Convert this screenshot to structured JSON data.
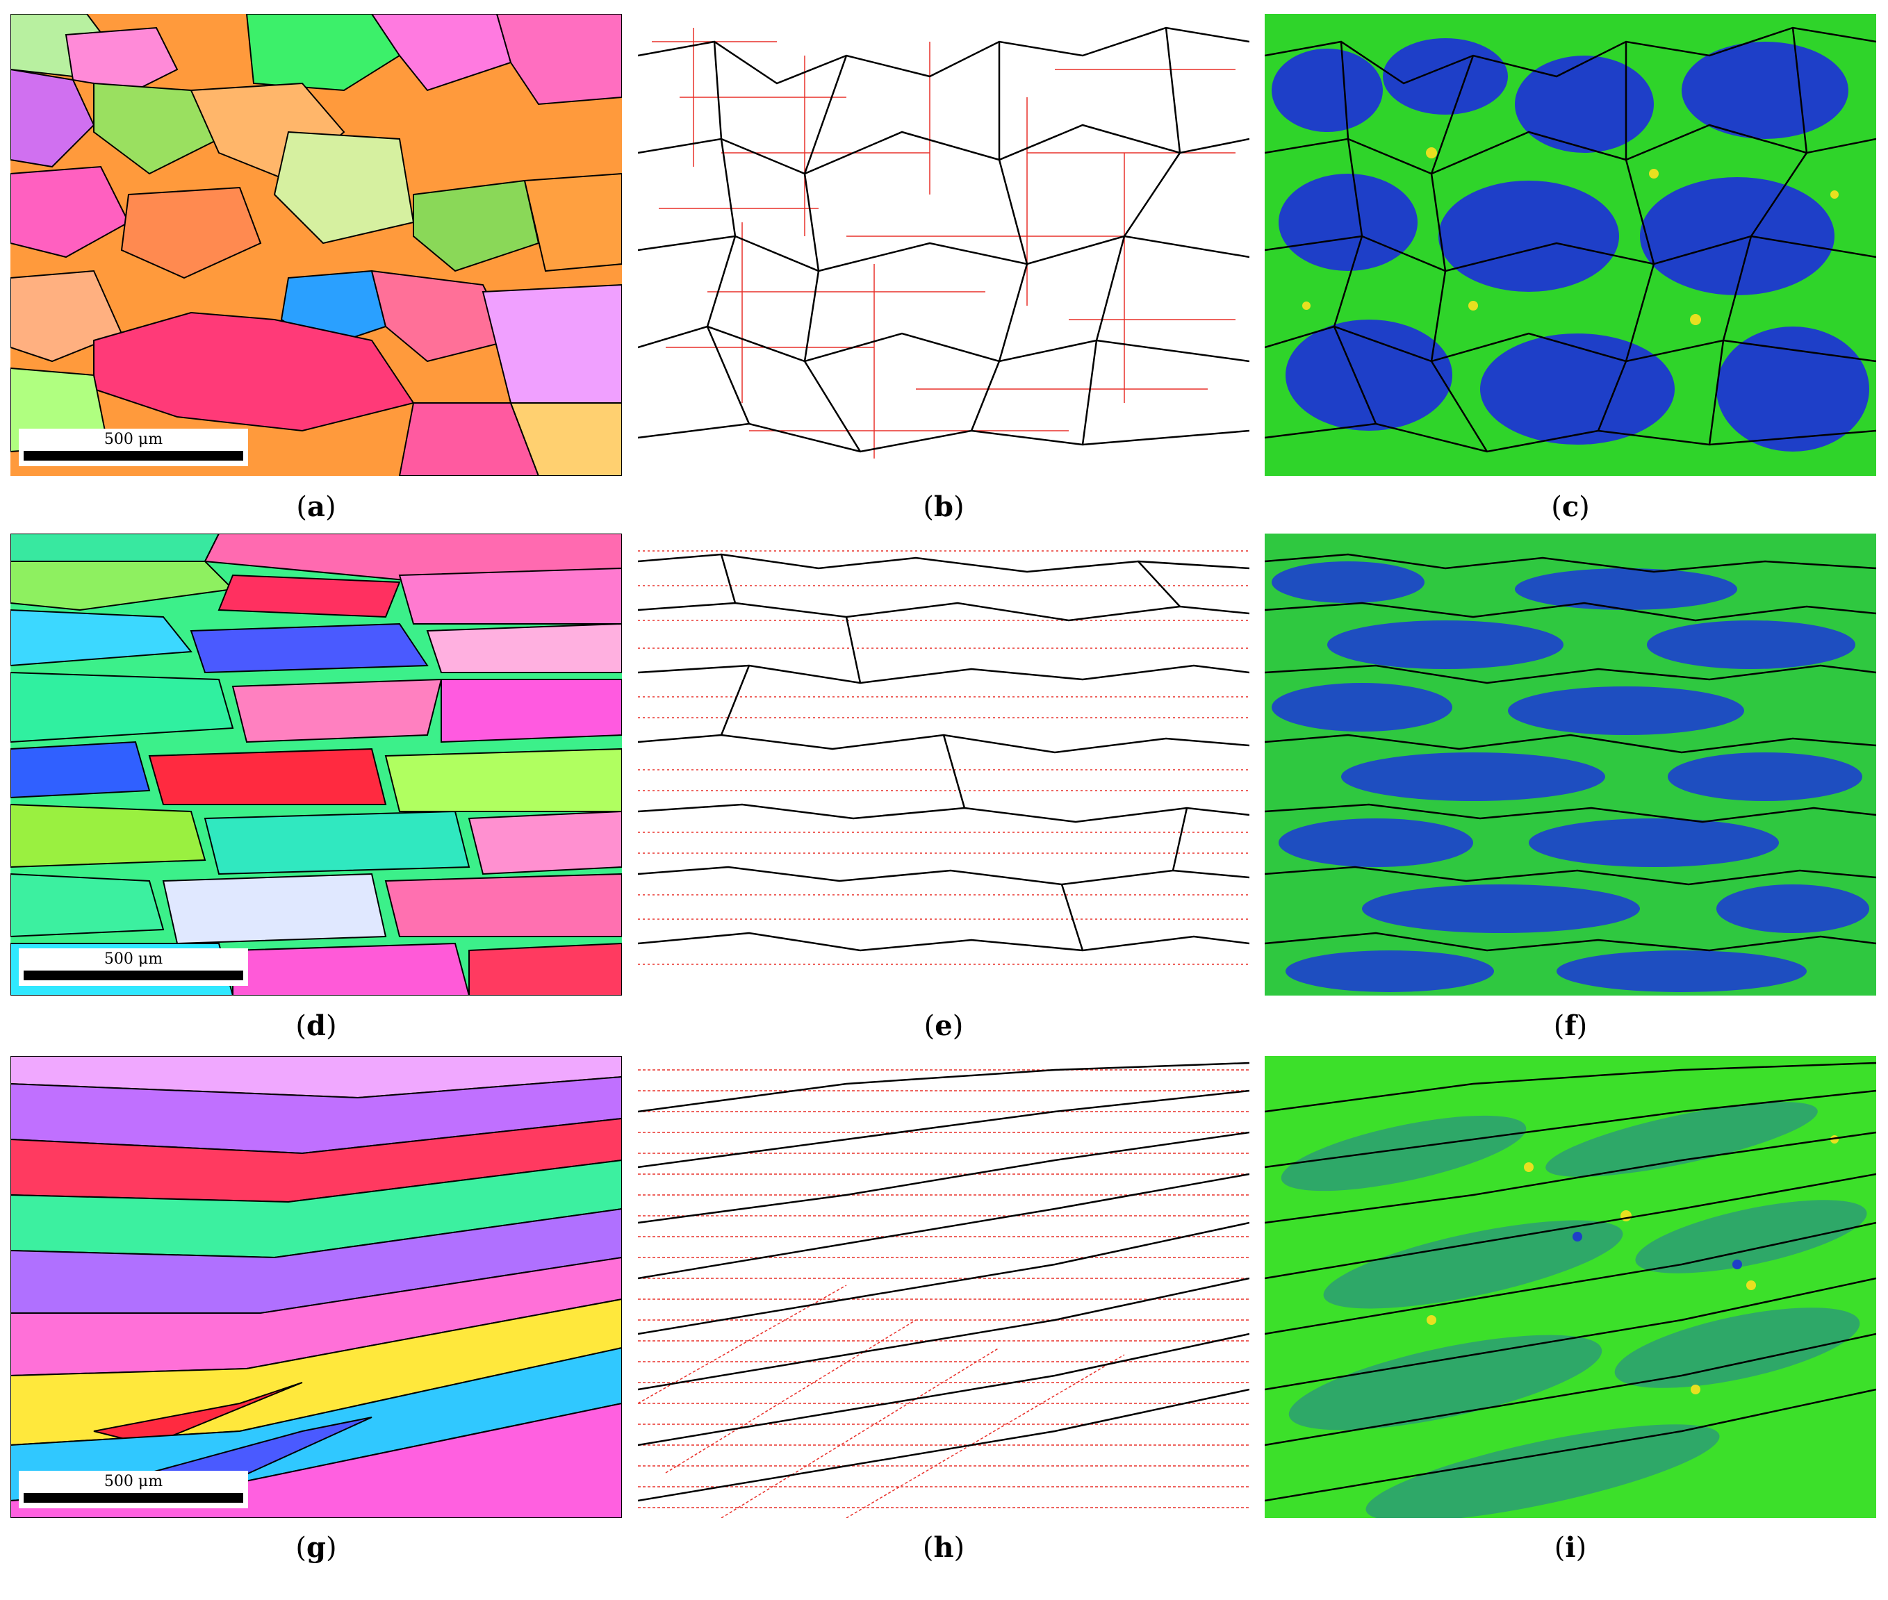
{
  "figure": {
    "captions": {
      "a": "a",
      "b": "b",
      "c": "c",
      "d": "d",
      "e": "e",
      "f": "f",
      "g": "g",
      "h": "h",
      "i": "i"
    },
    "scale_bar_label": "500 μm"
  },
  "panels": [
    {
      "id": "a",
      "kind": "ipf-orientation-map",
      "has_scale_bar": true
    },
    {
      "id": "b",
      "kind": "grain-boundary-map",
      "boundary_colors": {
        "high_angle": "#000000",
        "low_angle": "#e8302a"
      }
    },
    {
      "id": "c",
      "kind": "kam-map",
      "colors": {
        "low": "#1e3fc8",
        "mid": "#2fd42a",
        "high": "#e8e020"
      }
    },
    {
      "id": "d",
      "kind": "ipf-orientation-map",
      "has_scale_bar": true
    },
    {
      "id": "e",
      "kind": "grain-boundary-map",
      "boundary_colors": {
        "high_angle": "#000000",
        "low_angle": "#e8302a"
      }
    },
    {
      "id": "f",
      "kind": "kam-map",
      "colors": {
        "low": "#1e3fc8",
        "mid": "#2fd42a",
        "high": "#e8e020"
      }
    },
    {
      "id": "g",
      "kind": "ipf-orientation-map",
      "has_scale_bar": true
    },
    {
      "id": "h",
      "kind": "grain-boundary-map",
      "boundary_colors": {
        "high_angle": "#000000",
        "low_angle": "#e8302a"
      }
    },
    {
      "id": "i",
      "kind": "kam-map",
      "colors": {
        "low": "#1e3fc8",
        "mid": "#2fd42a",
        "high": "#e8e020"
      }
    }
  ]
}
